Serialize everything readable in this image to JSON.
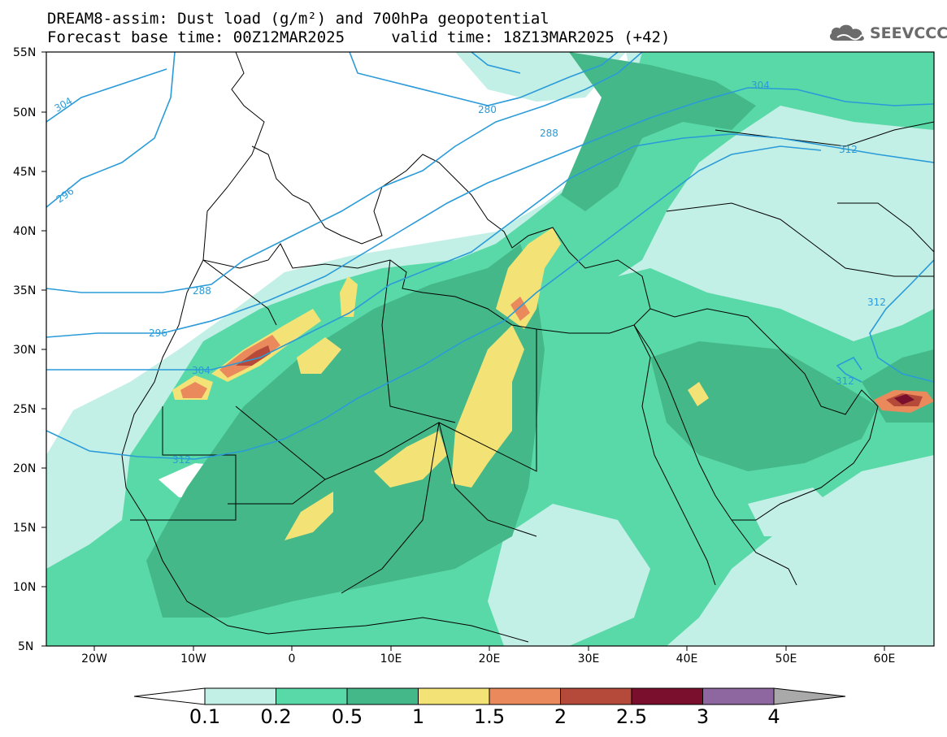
{
  "title_line1": "DREAM8-assim: Dust load (g/m²) and 700hPa geopotential",
  "title_line2": "Forecast base time: 00Z12MAR2025     valid time: 18Z13MAR2025 (+42)",
  "logo_text": "SEEVCCC",
  "lat_labels": [
    "55N",
    "50N",
    "45N",
    "40N",
    "35N",
    "30N",
    "25N",
    "20N",
    "15N",
    "10N",
    "5N"
  ],
  "lon_labels": [
    "20W",
    "10W",
    "0",
    "10E",
    "20E",
    "30E",
    "40E",
    "50E",
    "60E"
  ],
  "contour_labels": [
    "304",
    "296",
    "288",
    "296",
    "304",
    "312",
    "280",
    "288",
    "304",
    "312",
    "312",
    "312"
  ],
  "colorbar": {
    "labels": [
      "0.1",
      "0.2",
      "0.5",
      "1",
      "1.5",
      "2",
      "2.5",
      "3",
      "4"
    ],
    "colors": [
      "#c3f0e6",
      "#5ad9a8",
      "#45b889",
      "#f3e376",
      "#ea8a5c",
      "#b54a3a",
      "#7a0f2d",
      "#8e67a0",
      "#a9a9a9"
    ]
  }
}
